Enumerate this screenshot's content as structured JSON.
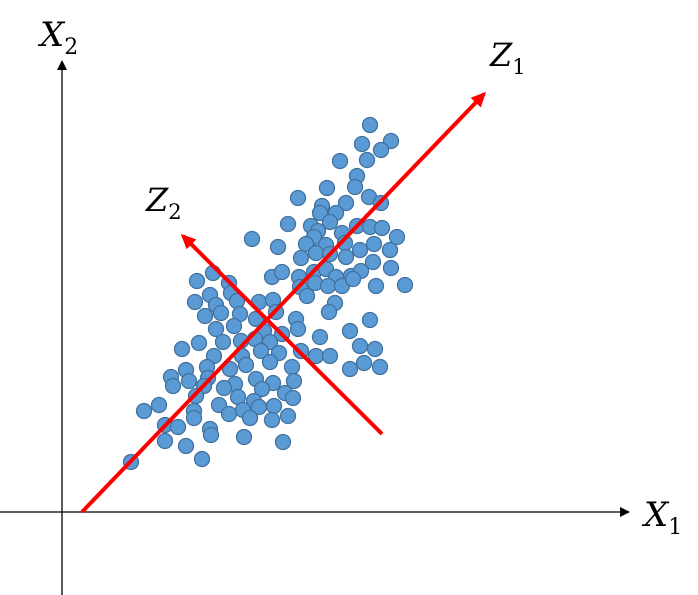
{
  "labels": {
    "x1": "X",
    "x1_sub": "1",
    "x2": "X",
    "x2_sub": "2",
    "z1": "Z",
    "z1_sub": "1",
    "z2": "Z",
    "z2_sub": "2"
  },
  "colors": {
    "axis": "#000000",
    "component": "#ff0000",
    "point_fill": "#5b9bd5",
    "point_stroke": "#41719c"
  },
  "points": [
    [
      370,
      125
    ],
    [
      391,
      141
    ],
    [
      362,
      144
    ],
    [
      381,
      150
    ],
    [
      340,
      161
    ],
    [
      367,
      160
    ],
    [
      357,
      176
    ],
    [
      327,
      188
    ],
    [
      355,
      187
    ],
    [
      298,
      198
    ],
    [
      369,
      197
    ],
    [
      346,
      203
    ],
    [
      322,
      206
    ],
    [
      320,
      213
    ],
    [
      381,
      203
    ],
    [
      336,
      213
    ],
    [
      288,
      224
    ],
    [
      311,
      226
    ],
    [
      330,
      222
    ],
    [
      318,
      231
    ],
    [
      357,
      226
    ],
    [
      370,
      227
    ],
    [
      342,
      233
    ],
    [
      314,
      237
    ],
    [
      382,
      228
    ],
    [
      252,
      239
    ],
    [
      278,
      247
    ],
    [
      306,
      244
    ],
    [
      326,
      245
    ],
    [
      345,
      243
    ],
    [
      374,
      244
    ],
    [
      397,
      237
    ],
    [
      316,
      253
    ],
    [
      330,
      254
    ],
    [
      360,
      250
    ],
    [
      390,
      250
    ],
    [
      301,
      258
    ],
    [
      346,
      257
    ],
    [
      373,
      262
    ],
    [
      213,
      273
    ],
    [
      229,
      283
    ],
    [
      272,
      277
    ],
    [
      282,
      272
    ],
    [
      299,
      277
    ],
    [
      314,
      272
    ],
    [
      326,
      269
    ],
    [
      336,
      277
    ],
    [
      351,
      276
    ],
    [
      361,
      271
    ],
    [
      391,
      268
    ],
    [
      197,
      281
    ],
    [
      210,
      295
    ],
    [
      231,
      293
    ],
    [
      300,
      287
    ],
    [
      315,
      283
    ],
    [
      328,
      286
    ],
    [
      342,
      286
    ],
    [
      353,
      279
    ],
    [
      376,
      286
    ],
    [
      405,
      285
    ],
    [
      195,
      302
    ],
    [
      216,
      305
    ],
    [
      237,
      301
    ],
    [
      259,
      302
    ],
    [
      273,
      300
    ],
    [
      307,
      296
    ],
    [
      335,
      303
    ],
    [
      205,
      316
    ],
    [
      221,
      313
    ],
    [
      240,
      314
    ],
    [
      256,
      319
    ],
    [
      276,
      312
    ],
    [
      296,
      319
    ],
    [
      329,
      312
    ],
    [
      370,
      320
    ],
    [
      216,
      329
    ],
    [
      234,
      326
    ],
    [
      264,
      331
    ],
    [
      282,
      334
    ],
    [
      298,
      329
    ],
    [
      320,
      337
    ],
    [
      350,
      331
    ],
    [
      182,
      349
    ],
    [
      199,
      343
    ],
    [
      223,
      342
    ],
    [
      241,
      341
    ],
    [
      255,
      339
    ],
    [
      270,
      342
    ],
    [
      214,
      356
    ],
    [
      242,
      356
    ],
    [
      261,
      351
    ],
    [
      279,
      353
    ],
    [
      301,
      351
    ],
    [
      316,
      356
    ],
    [
      330,
      356
    ],
    [
      360,
      346
    ],
    [
      375,
      349
    ],
    [
      186,
      370
    ],
    [
      207,
      367
    ],
    [
      230,
      369
    ],
    [
      246,
      365
    ],
    [
      270,
      362
    ],
    [
      292,
      367
    ],
    [
      364,
      363
    ],
    [
      350,
      369
    ],
    [
      380,
      367
    ],
    [
      171,
      377
    ],
    [
      189,
      381
    ],
    [
      208,
      378
    ],
    [
      235,
      384
    ],
    [
      256,
      379
    ],
    [
      273,
      383
    ],
    [
      294,
      381
    ],
    [
      204,
      386
    ],
    [
      224,
      388
    ],
    [
      173,
      386
    ],
    [
      196,
      396
    ],
    [
      238,
      397
    ],
    [
      262,
      389
    ],
    [
      285,
      393
    ],
    [
      219,
      405
    ],
    [
      254,
      401
    ],
    [
      159,
      405
    ],
    [
      144,
      411
    ],
    [
      194,
      411
    ],
    [
      229,
      414
    ],
    [
      243,
      410
    ],
    [
      259,
      407
    ],
    [
      274,
      406
    ],
    [
      293,
      398
    ],
    [
      165,
      425
    ],
    [
      194,
      418
    ],
    [
      210,
      429
    ],
    [
      250,
      418
    ],
    [
      272,
      420
    ],
    [
      288,
      416
    ],
    [
      178,
      427
    ],
    [
      211,
      435
    ],
    [
      244,
      437
    ],
    [
      283,
      442
    ],
    [
      165,
      441
    ],
    [
      186,
      446
    ],
    [
      202,
      459
    ],
    [
      131,
      462
    ]
  ]
}
